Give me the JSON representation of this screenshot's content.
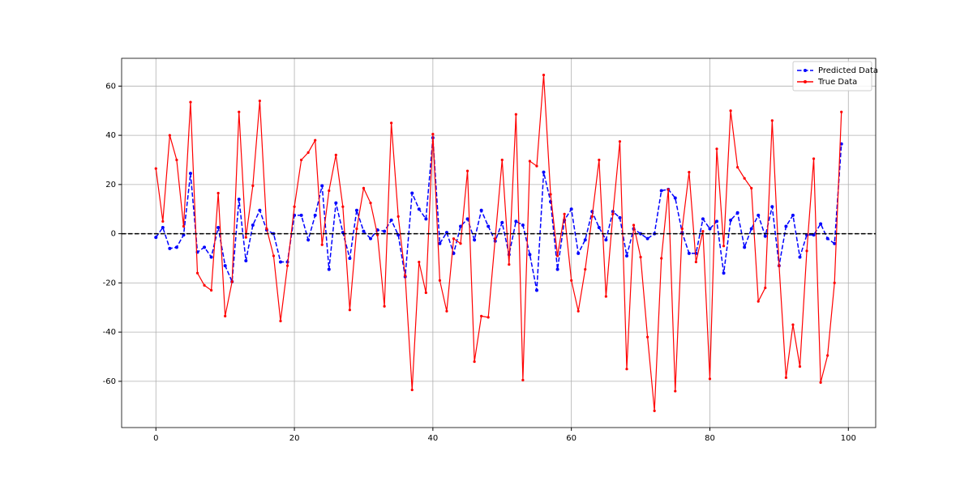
{
  "chart_data": {
    "type": "line",
    "x": [
      0,
      1,
      2,
      3,
      4,
      5,
      6,
      7,
      8,
      9,
      10,
      11,
      12,
      13,
      14,
      15,
      16,
      17,
      18,
      19,
      20,
      21,
      22,
      23,
      24,
      25,
      26,
      27,
      28,
      29,
      30,
      31,
      32,
      33,
      34,
      35,
      36,
      37,
      38,
      39,
      40,
      41,
      42,
      43,
      44,
      45,
      46,
      47,
      48,
      49,
      50,
      51,
      52,
      53,
      54,
      55,
      56,
      57,
      58,
      59,
      60,
      61,
      62,
      63,
      64,
      65,
      66,
      67,
      68,
      69,
      70,
      71,
      72,
      73,
      74,
      75,
      76,
      77,
      78,
      79,
      80,
      81,
      82,
      83,
      84,
      85,
      86,
      87,
      88,
      89,
      90,
      91,
      92,
      93,
      94,
      95,
      96,
      97,
      98,
      99
    ],
    "series": [
      {
        "name": "Predicted Data",
        "color": "#0000ff",
        "dash": true,
        "values": [
          -1.5,
          2.5,
          -6,
          -5.5,
          -0.5,
          24.5,
          -7.5,
          -5.5,
          -9.5,
          2.5,
          -13,
          -19.5,
          14,
          -11,
          3.5,
          9.5,
          1.5,
          0,
          -11.5,
          -11.5,
          7.5,
          7.5,
          -2.5,
          7.5,
          19.5,
          -14.5,
          12.5,
          0.5,
          -10,
          9.5,
          1,
          -2,
          1.5,
          1,
          5.5,
          -0.5,
          -17.5,
          16.5,
          10,
          6,
          39,
          -4,
          0.5,
          -8,
          3,
          6,
          -2.5,
          9.5,
          3,
          -3,
          4.5,
          -8.5,
          5,
          3.5,
          -8.5,
          -23,
          25,
          13,
          -14.5,
          5.5,
          10,
          -8,
          -2.5,
          9,
          2.5,
          -2.5,
          9,
          6.5,
          -9,
          2,
          0,
          -2,
          0,
          17.5,
          18,
          14.5,
          0.5,
          -8,
          -8,
          6,
          2,
          5,
          -16,
          5.5,
          8.5,
          -5.5,
          2,
          7.5,
          -1,
          11,
          -13,
          3,
          7.5,
          -9.5,
          -0.5,
          -0.5,
          4,
          -2,
          -4,
          36.5
        ]
      },
      {
        "name": "True Data",
        "color": "#ff0000",
        "dash": false,
        "values": [
          26.5,
          5,
          40,
          30,
          3,
          53.5,
          -16,
          -21,
          -23,
          16.5,
          -33.5,
          -19.5,
          49.5,
          -1.5,
          19.5,
          54,
          2,
          -9,
          -35.5,
          -13,
          11,
          30,
          33,
          38,
          -4.5,
          17.5,
          32,
          11,
          -31,
          2,
          18.5,
          12.5,
          -0.5,
          -29.5,
          45,
          7,
          -17,
          -63.5,
          -11.5,
          -24,
          40.5,
          -19,
          -31.5,
          -2,
          -4,
          25.5,
          -52,
          -33.5,
          -34,
          -2,
          30,
          -12.5,
          48.5,
          -59.5,
          29.5,
          27.5,
          64.5,
          16,
          -9,
          8,
          -19,
          -31.5,
          -14.5,
          7,
          30,
          -25.5,
          8,
          37.5,
          -55,
          3.5,
          -9.5,
          -42,
          -72,
          -10,
          18,
          -64,
          2,
          25,
          -11.5,
          1,
          -59,
          34.5,
          -5,
          50,
          27,
          22.5,
          18.5,
          -27.5,
          -22,
          46,
          -13,
          -58.5,
          -37,
          -54,
          -7,
          30.5,
          -60.5,
          -49.5,
          -20,
          49.5
        ]
      }
    ],
    "hline": 0,
    "xlim": [
      -4.95,
      103.95
    ],
    "ylim": [
      -78.8,
      71.3
    ],
    "xticks": [
      0,
      20,
      40,
      60,
      80,
      100
    ],
    "yticks": [
      -60,
      -40,
      -20,
      0,
      20,
      40,
      60
    ],
    "grid": true,
    "legend": "upper right"
  }
}
